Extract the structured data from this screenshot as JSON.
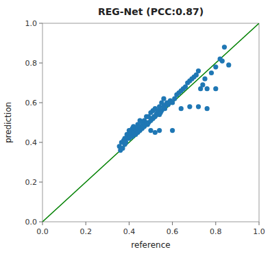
{
  "chart_data": {
    "type": "scatter",
    "title": "REG-Net (PCC:0.87)",
    "xlabel": "reference",
    "ylabel": "prediction",
    "xlim": [
      0.0,
      1.0
    ],
    "ylim": [
      0.0,
      1.0
    ],
    "xticks": [
      {
        "value": 0.0,
        "label": "0.0"
      },
      0.2,
      0.4,
      0.6,
      0.8,
      {
        "value": 1.0,
        "label": "1.0"
      }
    ],
    "yticks": [
      {
        "value": 0.0,
        "label": "0.0"
      },
      0.2,
      0.4,
      0.6,
      0.8,
      {
        "value": 1.0,
        "label": "1.0"
      }
    ],
    "series": [
      {
        "type": "line",
        "color": "green",
        "x": [
          0,
          1
        ],
        "values": [
          0,
          1
        ]
      },
      {
        "type": "scatter",
        "color": "#1f77b4",
        "x": [
          0.355,
          0.36,
          0.365,
          0.37,
          0.375,
          0.38,
          0.38,
          0.385,
          0.39,
          0.39,
          0.395,
          0.4,
          0.4,
          0.4,
          0.405,
          0.405,
          0.41,
          0.41,
          0.415,
          0.415,
          0.42,
          0.42,
          0.42,
          0.425,
          0.425,
          0.43,
          0.43,
          0.435,
          0.44,
          0.44,
          0.44,
          0.445,
          0.45,
          0.45,
          0.45,
          0.455,
          0.46,
          0.46,
          0.465,
          0.47,
          0.47,
          0.475,
          0.48,
          0.48,
          0.485,
          0.49,
          0.49,
          0.5,
          0.5,
          0.505,
          0.51,
          0.51,
          0.515,
          0.52,
          0.52,
          0.525,
          0.53,
          0.535,
          0.54,
          0.54,
          0.545,
          0.55,
          0.55,
          0.56,
          0.56,
          0.565,
          0.57,
          0.575,
          0.58,
          0.585,
          0.59,
          0.6,
          0.61,
          0.62,
          0.63,
          0.64,
          0.65,
          0.66,
          0.67,
          0.68,
          0.69,
          0.7,
          0.71,
          0.72,
          0.73,
          0.74,
          0.75,
          0.76,
          0.78,
          0.8,
          0.82,
          0.83,
          0.84,
          0.86,
          0.5,
          0.52,
          0.54,
          0.56,
          0.6,
          0.64,
          0.68,
          0.72,
          0.76,
          0.8
        ],
        "values": [
          0.38,
          0.36,
          0.4,
          0.37,
          0.41,
          0.39,
          0.42,
          0.4,
          0.42,
          0.44,
          0.43,
          0.42,
          0.44,
          0.46,
          0.43,
          0.45,
          0.44,
          0.46,
          0.43,
          0.47,
          0.44,
          0.46,
          0.48,
          0.45,
          0.47,
          0.44,
          0.47,
          0.46,
          0.45,
          0.47,
          0.49,
          0.46,
          0.46,
          0.48,
          0.51,
          0.47,
          0.47,
          0.5,
          0.48,
          0.48,
          0.51,
          0.49,
          0.5,
          0.53,
          0.49,
          0.5,
          0.53,
          0.51,
          0.55,
          0.52,
          0.52,
          0.56,
          0.53,
          0.53,
          0.57,
          0.54,
          0.55,
          0.56,
          0.54,
          0.58,
          0.55,
          0.56,
          0.6,
          0.58,
          0.62,
          0.57,
          0.59,
          0.6,
          0.59,
          0.6,
          0.61,
          0.6,
          0.62,
          0.64,
          0.65,
          0.66,
          0.67,
          0.68,
          0.7,
          0.71,
          0.72,
          0.73,
          0.74,
          0.76,
          0.67,
          0.69,
          0.72,
          0.67,
          0.75,
          0.78,
          0.82,
          0.81,
          0.88,
          0.79,
          0.46,
          0.45,
          0.46,
          0.58,
          0.46,
          0.57,
          0.58,
          0.58,
          0.57,
          0.67
        ]
      }
    ]
  }
}
